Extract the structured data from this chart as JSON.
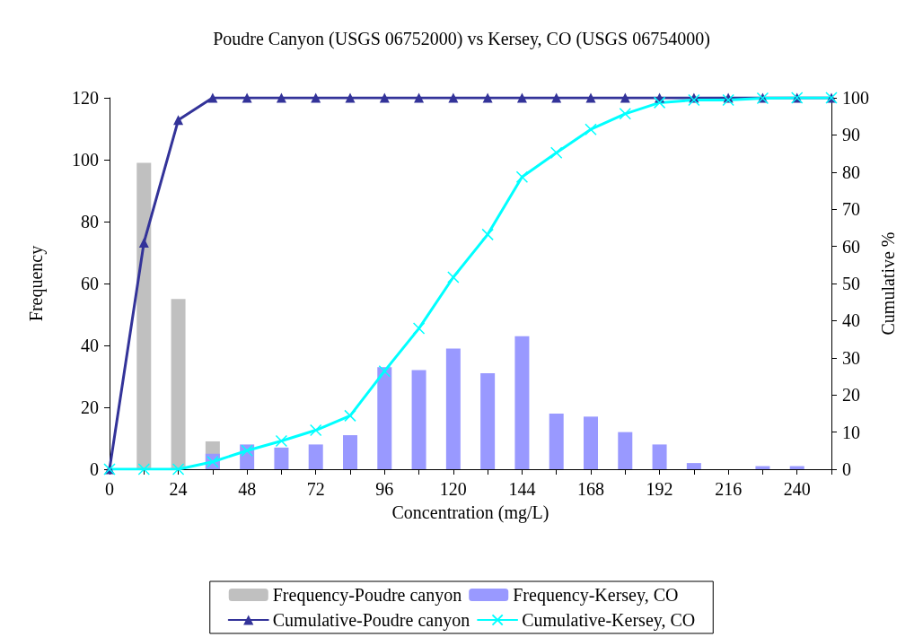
{
  "chart_data": {
    "type": "bar",
    "title": "Poudre Canyon (USGS 06752000) vs Kersey, CO (USGS 06754000)",
    "xlabel": "Concentration (mg/L)",
    "ylabel": "Frequency",
    "y2label": "Cumulative %",
    "x": [
      0,
      12,
      24,
      36,
      48,
      60,
      72,
      84,
      96,
      108,
      120,
      132,
      144,
      156,
      168,
      180,
      192,
      204,
      216,
      228,
      240,
      252
    ],
    "series": [
      {
        "name": "Frequency-Poudre canyon",
        "color": "#c0c0c0",
        "values": [
          0,
          99,
          55,
          9,
          0,
          0,
          0,
          0,
          0,
          0,
          0,
          0,
          0,
          0,
          0,
          0,
          0,
          0,
          0,
          0,
          0,
          0
        ]
      },
      {
        "name": "Frequency-Kersey, CO",
        "color": "#9999ff",
        "values": [
          0,
          0,
          0,
          5,
          8,
          7,
          8,
          11,
          33,
          32,
          39,
          31,
          43,
          18,
          17,
          12,
          8,
          2,
          0,
          1,
          1,
          0
        ]
      },
      {
        "name": "Cumulative-Poudre canyon",
        "type": "line",
        "axis": "y2",
        "marker": "triangle",
        "color": "#333399",
        "values": [
          0,
          61,
          94,
          100,
          100,
          100,
          100,
          100,
          100,
          100,
          100,
          100,
          100,
          100,
          100,
          100,
          100,
          100,
          100,
          100,
          100,
          100
        ]
      },
      {
        "name": "Cumulative-Kersey, CO",
        "type": "line",
        "axis": "y2",
        "marker": "cross",
        "color": "#00ffff",
        "values": [
          0,
          0,
          0,
          2,
          5,
          7.6,
          10.5,
          14.4,
          26.4,
          37.9,
          51.7,
          63.2,
          78.7,
          85.2,
          91.5,
          95.7,
          98.7,
          99.4,
          99.4,
          99.9,
          100,
          100
        ]
      }
    ],
    "xlim": [
      0,
      252
    ],
    "xticks": [
      0,
      {
        "value": 12,
        "label": null
      },
      24,
      {
        "value": 36,
        "label": null
      },
      48,
      {
        "value": 60,
        "label": null
      },
      72,
      {
        "value": 84,
        "label": null
      },
      96,
      {
        "value": 108,
        "label": null
      },
      120,
      {
        "value": 132,
        "label": null
      },
      144,
      {
        "value": 156,
        "label": null
      },
      168,
      {
        "value": 180,
        "label": null
      },
      192,
      {
        "value": 204,
        "label": null
      },
      216,
      {
        "value": 228,
        "label": null
      },
      240,
      {
        "value": 252,
        "label": null
      }
    ],
    "ylim": [
      0,
      120
    ],
    "yticks": [
      0,
      20,
      40,
      60,
      80,
      100,
      120
    ],
    "y2lim": [
      0,
      100
    ],
    "y2ticks": [
      0,
      10,
      20,
      30,
      40,
      50,
      60,
      70,
      80,
      90,
      100
    ],
    "grid": false,
    "legend": "bottom"
  }
}
